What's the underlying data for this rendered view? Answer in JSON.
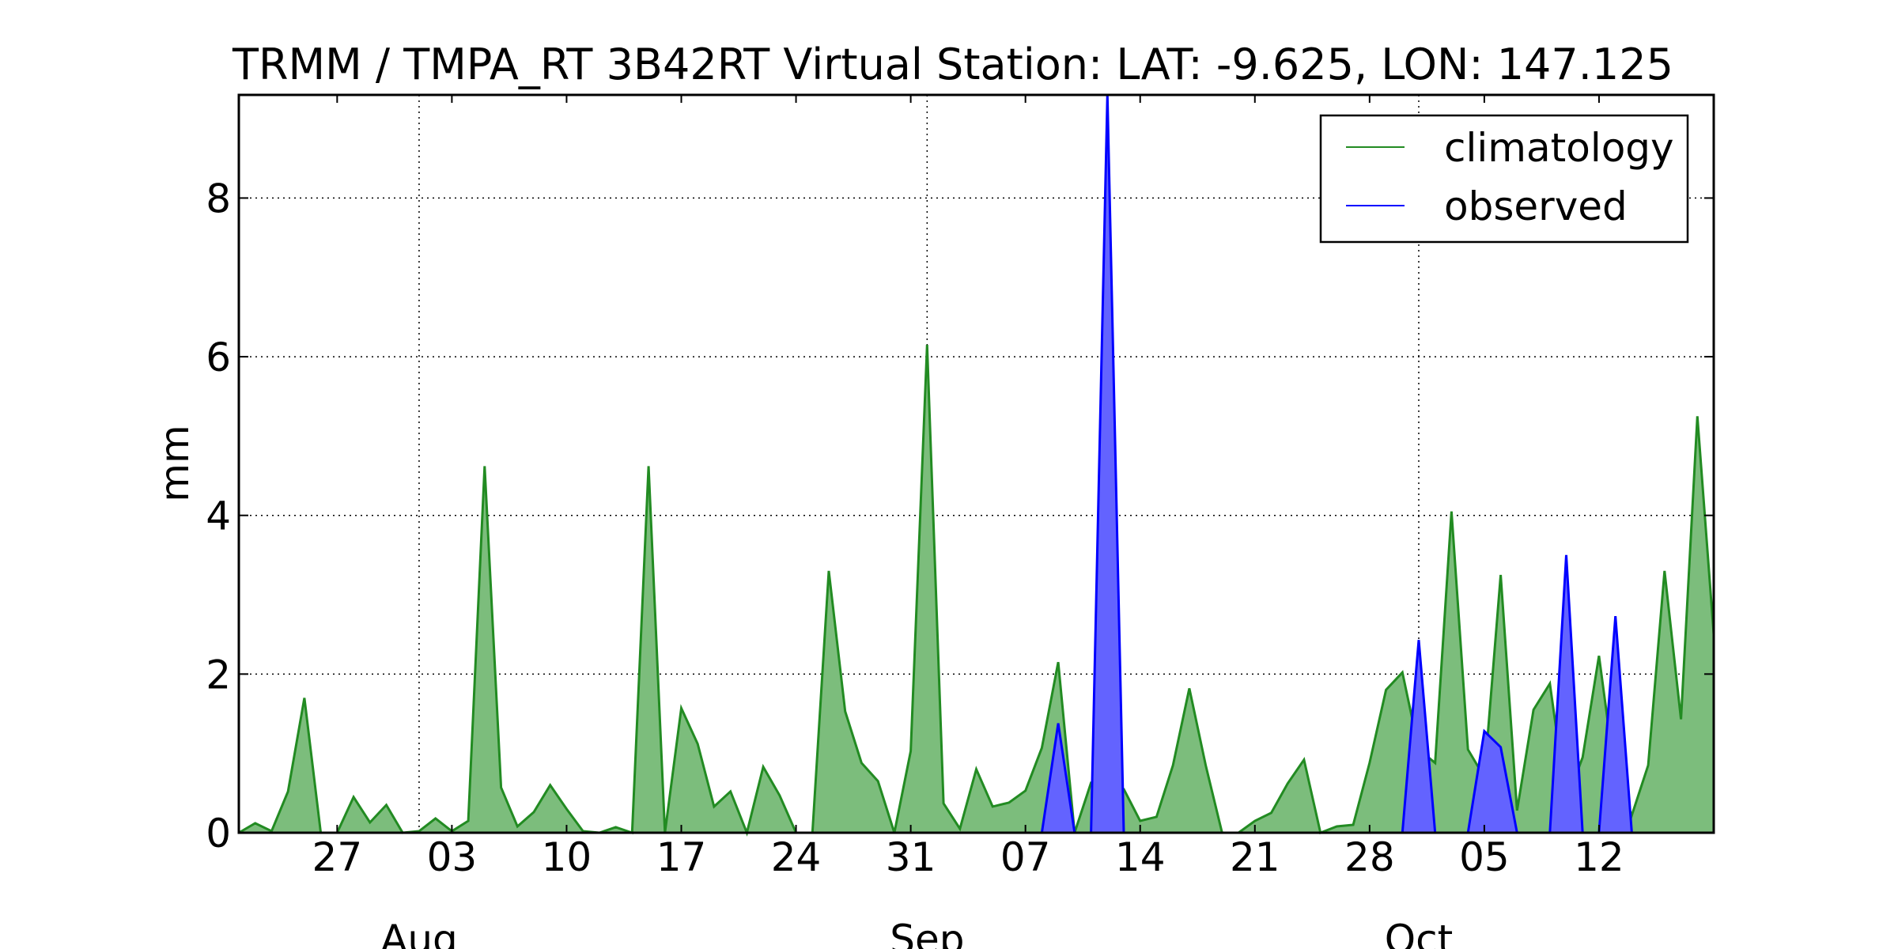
{
  "chart_data": {
    "type": "area",
    "title": "TRMM / TMPA_RT 3B42RT Virtual Station: LAT: -9.625, LON: 147.125",
    "ylabel": "mm",
    "xlabel": "",
    "ylim": [
      0,
      9.3
    ],
    "yticks": [
      0,
      2,
      4,
      6,
      8
    ],
    "xlim": [
      "2015-07-21",
      "2015-10-19"
    ],
    "grid": true,
    "legend_position": "top-right",
    "x_tick_labels": [
      {
        "date": "2015-07-27",
        "label": "27"
      },
      {
        "date": "2015-08-03",
        "label": "03"
      },
      {
        "date": "2015-08-10",
        "label": "10"
      },
      {
        "date": "2015-08-17",
        "label": "17"
      },
      {
        "date": "2015-08-24",
        "label": "24"
      },
      {
        "date": "2015-08-31",
        "label": "31"
      },
      {
        "date": "2015-09-07",
        "label": "07"
      },
      {
        "date": "2015-09-14",
        "label": "14"
      },
      {
        "date": "2015-09-21",
        "label": "21"
      },
      {
        "date": "2015-09-28",
        "label": "28"
      },
      {
        "date": "2015-10-05",
        "label": "05"
      },
      {
        "date": "2015-10-12",
        "label": "12"
      }
    ],
    "month_labels": [
      {
        "date": "2015-08-01",
        "label": "Aug"
      },
      {
        "date": "2015-09-01",
        "label": "Sep"
      },
      {
        "date": "2015-10-01",
        "label": "Oct"
      }
    ],
    "series": [
      {
        "name": "climatology",
        "color": "#228b22",
        "fill": "#7cbd7c",
        "points": [
          [
            "2015-07-21",
            0
          ],
          [
            "2015-07-22",
            0.12
          ],
          [
            "2015-07-23",
            0.02
          ],
          [
            "2015-07-24",
            0.52
          ],
          [
            "2015-07-25",
            1.7
          ],
          [
            "2015-07-26",
            0
          ],
          [
            "2015-07-27",
            0
          ],
          [
            "2015-07-28",
            0.45
          ],
          [
            "2015-07-29",
            0.13
          ],
          [
            "2015-07-30",
            0.35
          ],
          [
            "2015-07-31",
            0
          ],
          [
            "2015-08-01",
            0.02
          ],
          [
            "2015-08-02",
            0.18
          ],
          [
            "2015-08-03",
            0.02
          ],
          [
            "2015-08-04",
            0.15
          ],
          [
            "2015-08-05",
            4.62
          ],
          [
            "2015-08-06",
            0.57
          ],
          [
            "2015-08-07",
            0.08
          ],
          [
            "2015-08-08",
            0.26
          ],
          [
            "2015-08-09",
            0.6
          ],
          [
            "2015-08-10",
            0.3
          ],
          [
            "2015-08-11",
            0.02
          ],
          [
            "2015-08-12",
            0
          ],
          [
            "2015-08-13",
            0.07
          ],
          [
            "2015-08-14",
            0
          ],
          [
            "2015-08-15",
            4.62
          ],
          [
            "2015-08-16",
            0
          ],
          [
            "2015-08-17",
            1.57
          ],
          [
            "2015-08-18",
            1.12
          ],
          [
            "2015-08-19",
            0.33
          ],
          [
            "2015-08-20",
            0.52
          ],
          [
            "2015-08-21",
            0
          ],
          [
            "2015-08-22",
            0.83
          ],
          [
            "2015-08-23",
            0.47
          ],
          [
            "2015-08-24",
            0
          ],
          [
            "2015-08-25",
            0
          ],
          [
            "2015-08-26",
            3.3
          ],
          [
            "2015-08-27",
            1.53
          ],
          [
            "2015-08-28",
            0.88
          ],
          [
            "2015-08-29",
            0.65
          ],
          [
            "2015-08-30",
            0
          ],
          [
            "2015-08-31",
            1.03
          ],
          [
            "2015-09-01",
            6.15
          ],
          [
            "2015-09-02",
            0.37
          ],
          [
            "2015-09-03",
            0.05
          ],
          [
            "2015-09-04",
            0.8
          ],
          [
            "2015-09-05",
            0.33
          ],
          [
            "2015-09-06",
            0.38
          ],
          [
            "2015-09-07",
            0.53
          ],
          [
            "2015-09-08",
            1.07
          ],
          [
            "2015-09-09",
            2.15
          ],
          [
            "2015-09-10",
            0
          ],
          [
            "2015-09-11",
            0.63
          ],
          [
            "2015-09-12",
            0.63
          ],
          [
            "2015-09-13",
            0.55
          ],
          [
            "2015-09-14",
            0.15
          ],
          [
            "2015-09-15",
            0.2
          ],
          [
            "2015-09-16",
            0.85
          ],
          [
            "2015-09-17",
            1.82
          ],
          [
            "2015-09-18",
            0.85
          ],
          [
            "2015-09-19",
            0
          ],
          [
            "2015-09-20",
            0
          ],
          [
            "2015-09-21",
            0.15
          ],
          [
            "2015-09-22",
            0.25
          ],
          [
            "2015-09-23",
            0.62
          ],
          [
            "2015-09-24",
            0.92
          ],
          [
            "2015-09-25",
            0
          ],
          [
            "2015-09-26",
            0.08
          ],
          [
            "2015-09-27",
            0.1
          ],
          [
            "2015-09-28",
            0.88
          ],
          [
            "2015-09-29",
            1.8
          ],
          [
            "2015-09-30",
            2.02
          ],
          [
            "2015-10-01",
            1.05
          ],
          [
            "2015-10-02",
            0.88
          ],
          [
            "2015-10-03",
            4.05
          ],
          [
            "2015-10-04",
            1.05
          ],
          [
            "2015-10-05",
            0.7
          ],
          [
            "2015-10-06",
            3.25
          ],
          [
            "2015-10-07",
            0.28
          ],
          [
            "2015-10-08",
            1.55
          ],
          [
            "2015-10-09",
            1.88
          ],
          [
            "2015-10-10",
            0.4
          ],
          [
            "2015-10-11",
            0.95
          ],
          [
            "2015-10-12",
            2.23
          ],
          [
            "2015-10-13",
            0.68
          ],
          [
            "2015-10-14",
            0.22
          ],
          [
            "2015-10-15",
            0.85
          ],
          [
            "2015-10-16",
            3.3
          ],
          [
            "2015-10-17",
            1.43
          ],
          [
            "2015-10-18",
            5.25
          ],
          [
            "2015-10-19",
            2.5
          ]
        ]
      },
      {
        "name": "observed",
        "color": "#0000ff",
        "fill": "#6363ff",
        "points": [
          [
            "2015-09-07",
            0
          ],
          [
            "2015-09-08",
            0
          ],
          [
            "2015-09-09",
            1.38
          ],
          [
            "2015-09-10",
            0
          ],
          [
            "2015-09-11",
            0
          ],
          [
            "2015-09-12",
            9.3
          ],
          [
            "2015-09-13",
            0
          ],
          [
            "2015-09-30",
            0
          ],
          [
            "2015-10-01",
            2.43
          ],
          [
            "2015-10-02",
            0
          ],
          [
            "2015-10-04",
            0
          ],
          [
            "2015-10-05",
            1.28
          ],
          [
            "2015-10-06",
            1.08
          ],
          [
            "2015-10-07",
            0
          ],
          [
            "2015-10-08",
            0
          ],
          [
            "2015-10-09",
            0
          ],
          [
            "2015-10-10",
            3.5
          ],
          [
            "2015-10-11",
            0
          ],
          [
            "2015-10-12",
            0
          ],
          [
            "2015-10-13",
            2.73
          ],
          [
            "2015-10-14",
            0
          ]
        ]
      }
    ]
  }
}
